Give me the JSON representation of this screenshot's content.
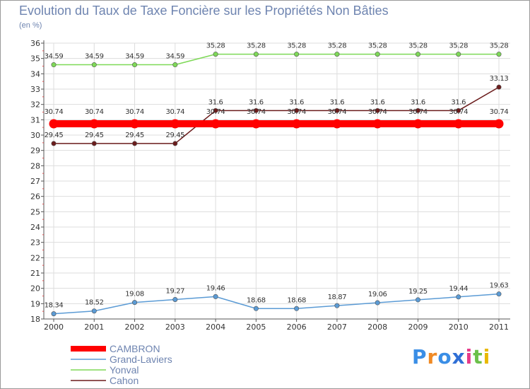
{
  "chart_data": {
    "type": "line",
    "title": "Evolution du Taux de Taxe Foncière sur les Propriétés Non Bâties",
    "ylabel": "(en %)",
    "xlabel": "",
    "x": [
      "2000",
      "2001",
      "2002",
      "2003",
      "2004",
      "2005",
      "2006",
      "2007",
      "2008",
      "2009",
      "2010",
      "2011"
    ],
    "ylim": [
      18,
      36
    ],
    "yticks": [
      18,
      19,
      20,
      21,
      22,
      23,
      24,
      25,
      26,
      27,
      28,
      29,
      30,
      31,
      32,
      33,
      34,
      35,
      36
    ],
    "legend_position": "bottom-left",
    "series": [
      {
        "name": "CAMBRON",
        "color": "#ff0000",
        "values": [
          30.74,
          30.74,
          30.74,
          30.74,
          30.74,
          30.74,
          30.74,
          30.74,
          30.74,
          30.74,
          30.74,
          30.74
        ],
        "labels": [
          "30.74",
          "30.74",
          "30.74",
          "30.74",
          "30.74",
          "30.74",
          "30.74",
          "30.74",
          "30.74",
          "30.74",
          "30.74",
          "30.74"
        ]
      },
      {
        "name": "Grand-Laviers",
        "color": "#5b9bd5",
        "values": [
          18.34,
          18.52,
          19.08,
          19.27,
          19.46,
          18.68,
          18.68,
          18.87,
          19.06,
          19.25,
          19.44,
          19.63
        ],
        "labels": [
          "18.34",
          "18.52",
          "19.08",
          "19.27",
          "19.46",
          "18.68",
          "18.68",
          "18.87",
          "19.06",
          "19.25",
          "19.44",
          "19.63"
        ]
      },
      {
        "name": "Yonval",
        "color": "#7ed957",
        "values": [
          34.59,
          34.59,
          34.59,
          34.59,
          35.28,
          35.28,
          35.28,
          35.28,
          35.28,
          35.28,
          35.28,
          35.28
        ],
        "labels": [
          "34.59",
          "34.59",
          "34.59",
          "34.59",
          "35.28",
          "35.28",
          "35.28",
          "35.28",
          "35.28",
          "35.28",
          "35.28",
          "35.28"
        ]
      },
      {
        "name": "Cahon",
        "color": "#6b1c1c",
        "values": [
          29.45,
          29.45,
          29.45,
          29.45,
          31.6,
          31.6,
          31.6,
          31.6,
          31.6,
          31.6,
          31.6,
          33.13
        ],
        "labels": [
          "29.45",
          "29.45",
          "29.45",
          "29.45",
          "31.6",
          "31.6",
          "31.6",
          "31.6",
          "31.6",
          "31.6",
          "31.6",
          "33.13"
        ]
      }
    ]
  },
  "brand": {
    "logo_text": "Proxiti",
    "logo_colors": [
      "#3a8ee6",
      "#f08a24",
      "#3a8ee6",
      "#2f6fd6",
      "#e63b8a",
      "#6cc04a",
      "#e9b800"
    ]
  },
  "colors": {
    "axis": "#555555",
    "grid": "#dddddd",
    "text_accent": "#6e84b0"
  }
}
